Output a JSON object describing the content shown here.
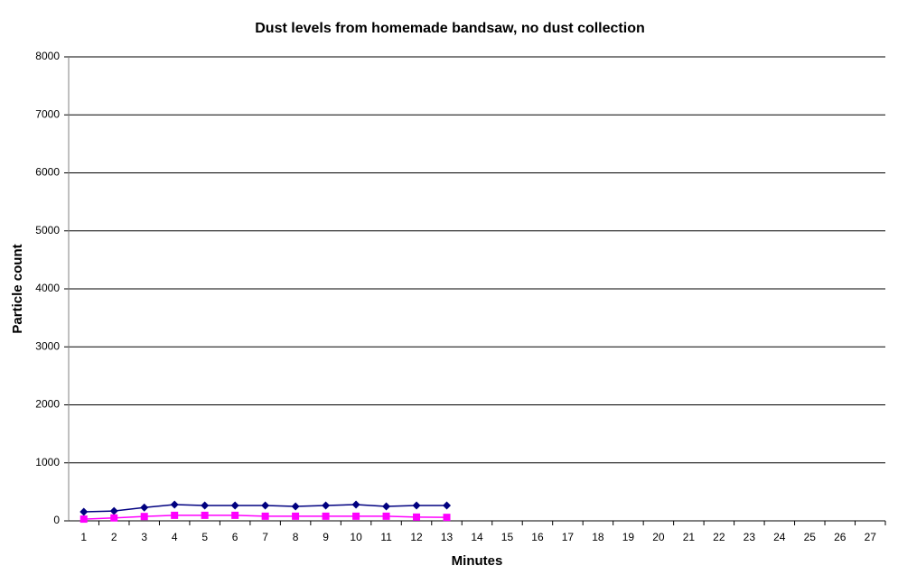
{
  "chart_data": {
    "type": "line",
    "title": "Dust levels from homemade bandsaw, no dust collection",
    "x_label": "Minutes",
    "y_label": "Particle count",
    "categories": [
      1,
      2,
      3,
      4,
      5,
      6,
      7,
      8,
      9,
      10,
      11,
      12,
      13,
      14,
      15,
      16,
      17,
      18,
      19,
      20,
      21,
      22,
      23,
      24,
      25,
      26,
      27
    ],
    "series": [
      {
        "color": "#000080",
        "marker": "diamond",
        "values": [
          155,
          170,
          230,
          280,
          265,
          265,
          265,
          250,
          265,
          280,
          250,
          265,
          265,
          null,
          null,
          null,
          null,
          null,
          null,
          null,
          null,
          null,
          null,
          null,
          null,
          null,
          null
        ]
      },
      {
        "color": "#ff00ff",
        "marker": "square",
        "values": [
          30,
          50,
          75,
          95,
          95,
          95,
          80,
          80,
          80,
          80,
          80,
          65,
          60,
          null,
          null,
          null,
          null,
          null,
          null,
          null,
          null,
          null,
          null,
          null,
          null,
          null,
          null
        ]
      }
    ],
    "ylim": [
      0,
      8000
    ],
    "yticks": [
      0,
      1000,
      2000,
      3000,
      4000,
      5000,
      6000,
      7000,
      8000
    ],
    "grid": true
  }
}
